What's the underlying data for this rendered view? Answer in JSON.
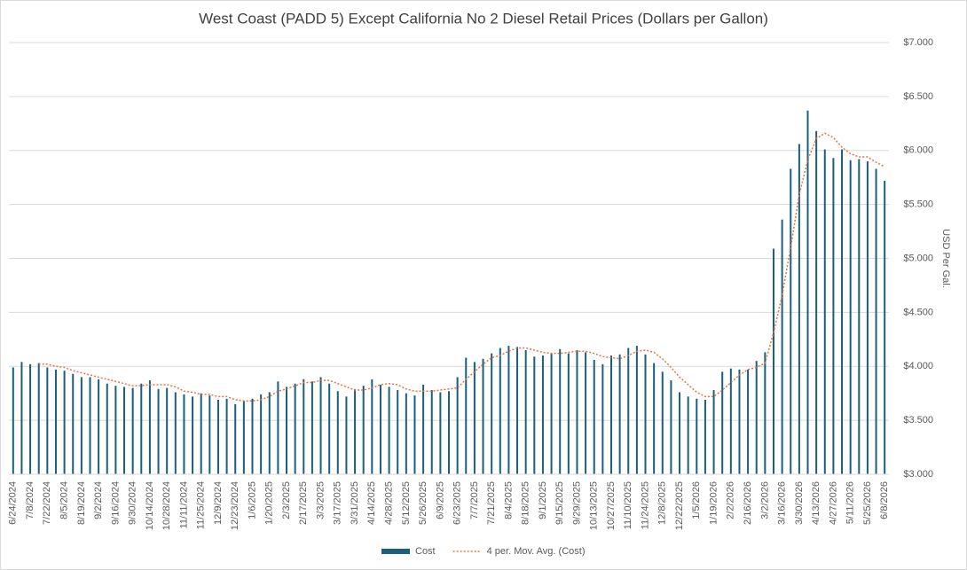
{
  "chart_data": {
    "type": "bar",
    "title": "West Coast (PADD 5) Except California No 2 Diesel Retail Prices (Dollars per Gallon)",
    "y_label": "USD Per Gal.",
    "y_axis_side": "right",
    "legend": "bottom",
    "grid": true,
    "ylim": [
      3,
      7
    ],
    "yticks": [
      {
        "value": 3,
        "label": "$3.000"
      },
      {
        "value": 3.5,
        "label": "$3.500"
      },
      {
        "value": 4,
        "label": "$4.000"
      },
      {
        "value": 4.5,
        "label": "$4.500"
      },
      {
        "value": 5,
        "label": "$5.000"
      },
      {
        "value": 5.5,
        "label": "$5.500"
      },
      {
        "value": 6,
        "label": "$6.000"
      },
      {
        "value": 6.5,
        "label": "$6.500"
      },
      {
        "value": 7,
        "label": "$7.000"
      }
    ],
    "categories": [
      "6/24/2024",
      null,
      "7/8/2024",
      null,
      "7/22/2024",
      null,
      "8/5/2024",
      null,
      "8/19/2024",
      null,
      "9/2/2024",
      null,
      "9/16/2024",
      null,
      "9/30/2024",
      null,
      "10/14/2024",
      null,
      "10/28/2024",
      null,
      "11/11/2024",
      null,
      "11/25/2024",
      null,
      "12/9/2024",
      null,
      "12/23/2024",
      null,
      "1/6/2025",
      null,
      "1/20/2025",
      null,
      "2/3/2025",
      null,
      "2/17/2025",
      null,
      "3/3/2025",
      null,
      "3/17/2025",
      null,
      "3/31/2025",
      null,
      "4/14/2025",
      null,
      "4/28/2025",
      null,
      "5/12/2025",
      null,
      "5/26/2025",
      null,
      "6/9/2025",
      null,
      "6/23/2025",
      null,
      "7/7/2025",
      null,
      "7/21/2025",
      null,
      "8/4/2025",
      null,
      "8/18/2025",
      null,
      "9/1/2025",
      null,
      "9/15/2025",
      null,
      "9/29/2025",
      null,
      "10/13/2025",
      null,
      "10/27/2025",
      null,
      "11/10/2025",
      null,
      "11/24/2025",
      null,
      "12/8/2025",
      null,
      "12/22/2025",
      null,
      "1/5/2026",
      null,
      "1/19/2026",
      null,
      "2/2/2026",
      null,
      "2/16/2026",
      null,
      "3/2/2026",
      null,
      "3/16/2026",
      null,
      "3/30/2026",
      null,
      "4/13/2026",
      null,
      "4/27/2026",
      null,
      "5/11/2026",
      null,
      "5/25/2026",
      null,
      "6/8/2026"
    ],
    "series": [
      {
        "name": "Cost",
        "type": "bar",
        "color": "#1b5f7e",
        "values": [
          3.99,
          4.04,
          4.02,
          4.03,
          3.99,
          3.97,
          3.96,
          3.93,
          3.9,
          3.9,
          3.88,
          3.84,
          3.82,
          3.81,
          3.8,
          3.84,
          3.87,
          3.79,
          3.8,
          3.76,
          3.74,
          3.72,
          3.75,
          3.73,
          3.69,
          3.7,
          3.65,
          3.68,
          3.7,
          3.74,
          3.76,
          3.86,
          3.81,
          3.84,
          3.88,
          3.86,
          3.9,
          3.84,
          3.77,
          3.72,
          3.79,
          3.82,
          3.88,
          3.83,
          3.81,
          3.78,
          3.75,
          3.73,
          3.83,
          3.78,
          3.76,
          3.77,
          3.9,
          4.08,
          4.04,
          4.07,
          4.12,
          4.17,
          4.19,
          4.18,
          4.15,
          4.09,
          4.1,
          4.12,
          4.16,
          4.12,
          4.15,
          4.13,
          4.06,
          4.02,
          4.1,
          4.11,
          4.17,
          4.19,
          4.11,
          4.03,
          3.95,
          3.87,
          3.76,
          3.72,
          3.7,
          3.69,
          3.78,
          3.95,
          3.98,
          3.97,
          3.97,
          4.05,
          4.13,
          5.09,
          5.36,
          5.83,
          6.06,
          6.37,
          6.18,
          6.01,
          5.93,
          6.01,
          5.91,
          5.92,
          5.9,
          5.83,
          5.72
        ]
      },
      {
        "name": "4 per. Mov. Avg. (Cost)",
        "type": "line",
        "color": "#e8743b",
        "values": [
          null,
          null,
          null,
          4.02,
          4.02,
          4.0,
          3.99,
          3.96,
          3.94,
          3.92,
          3.9,
          3.88,
          3.86,
          3.84,
          3.82,
          3.82,
          3.83,
          3.83,
          3.83,
          3.81,
          3.77,
          3.76,
          3.74,
          3.74,
          3.72,
          3.72,
          3.69,
          3.68,
          3.68,
          3.69,
          3.72,
          3.77,
          3.79,
          3.82,
          3.85,
          3.85,
          3.87,
          3.87,
          3.84,
          3.81,
          3.78,
          3.78,
          3.8,
          3.83,
          3.84,
          3.83,
          3.79,
          3.77,
          3.77,
          3.77,
          3.78,
          3.79,
          3.8,
          3.88,
          3.95,
          4.02,
          4.08,
          4.1,
          4.14,
          4.17,
          4.17,
          4.15,
          4.13,
          4.12,
          4.12,
          4.13,
          4.14,
          4.14,
          4.12,
          4.09,
          4.08,
          4.07,
          4.1,
          4.14,
          4.15,
          4.13,
          4.07,
          3.99,
          3.9,
          3.83,
          3.76,
          3.72,
          3.72,
          3.78,
          3.85,
          3.92,
          3.97,
          3.99,
          4.03,
          4.31,
          4.66,
          5.1,
          5.59,
          5.91,
          6.11,
          6.16,
          6.12,
          6.03,
          5.97,
          5.94,
          5.94,
          5.89,
          5.85
        ]
      }
    ]
  }
}
